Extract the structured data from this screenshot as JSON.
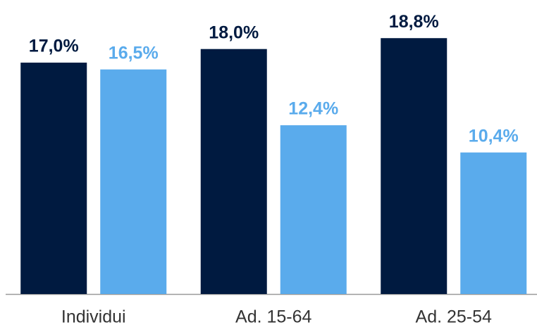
{
  "chart_data": {
    "type": "bar",
    "categories": [
      "Individui",
      "Ad. 15-64",
      "Ad. 25-54"
    ],
    "series": [
      {
        "color": "#001a40",
        "values": [
          17.0,
          18.0,
          18.8
        ],
        "value_labels": [
          "17,0%",
          "18,0%",
          "18,8%"
        ]
      },
      {
        "color": "#5aabec",
        "values": [
          16.5,
          12.4,
          10.4
        ],
        "value_labels": [
          "16,5%",
          "12,4%",
          "10,4%"
        ]
      }
    ],
    "ylim": [
      0,
      20
    ]
  }
}
